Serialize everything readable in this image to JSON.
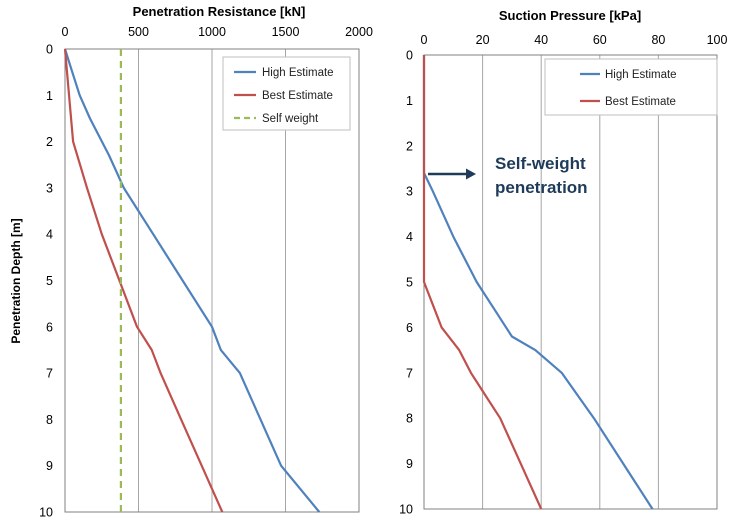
{
  "chart_data": [
    {
      "type": "line",
      "title": "Penetration Resistance [kN]",
      "xlabel": "Penetration Resistance [kN]",
      "ylabel": "Penetration Depth [m]",
      "x_axis_position": "top",
      "y_axis_inverted": true,
      "xlim": [
        0,
        2000
      ],
      "ylim": [
        0,
        10
      ],
      "xticks": [
        "0",
        "500",
        "1000",
        "1500",
        "2000"
      ],
      "yticks": [
        "0",
        "1",
        "2",
        "3",
        "4",
        "5",
        "6",
        "7",
        "8",
        "9",
        "10"
      ],
      "grid": "vertical",
      "legend": "top-right",
      "series": [
        {
          "name": "High Estimate",
          "color": "#4f81bd",
          "dash": "solid",
          "points": [
            [
              0,
              0
            ],
            [
              50,
              0.5
            ],
            [
              100,
              1.0
            ],
            [
              170,
              1.5
            ],
            [
              300,
              2.3
            ],
            [
              400,
              3.0
            ],
            [
              600,
              4.0
            ],
            [
              800,
              5.0
            ],
            [
              1000,
              6.0
            ],
            [
              1060,
              6.5
            ],
            [
              1190,
              7.0
            ],
            [
              1330,
              8.0
            ],
            [
              1470,
              9.0
            ],
            [
              1730,
              10.0
            ]
          ]
        },
        {
          "name": "Best Estimate",
          "color": "#c0504d",
          "dash": "solid",
          "points": [
            [
              0,
              0
            ],
            [
              55,
              2.0
            ],
            [
              150,
              3.0
            ],
            [
              250,
              4.0
            ],
            [
              370,
              5.0
            ],
            [
              490,
              6.0
            ],
            [
              590,
              6.5
            ],
            [
              650,
              7.0
            ],
            [
              790,
              8.0
            ],
            [
              930,
              9.0
            ],
            [
              1070,
              10.0
            ]
          ]
        },
        {
          "name": "Self weight",
          "color": "#9bbb59",
          "dash": "dashed",
          "points": [
            [
              380,
              0
            ],
            [
              380,
              10
            ]
          ]
        }
      ]
    },
    {
      "type": "line",
      "title": "Suction Pressure [kPa]",
      "xlabel": "Suction Pressure [kPa]",
      "ylabel": "",
      "x_axis_position": "top",
      "y_axis_inverted": true,
      "xlim": [
        0,
        100
      ],
      "ylim": [
        0,
        10
      ],
      "xticks": [
        "0",
        "20",
        "40",
        "60",
        "80",
        "100"
      ],
      "yticks": [
        "0",
        "1",
        "2",
        "3",
        "4",
        "5",
        "6",
        "7",
        "8",
        "9",
        "10"
      ],
      "grid": "vertical",
      "legend": "top-right",
      "annotation": {
        "text_line1": "Self-weight",
        "text_line2": "penetration",
        "points_to_depth": 2.6
      },
      "series": [
        {
          "name": "High Estimate",
          "color": "#4f81bd",
          "dash": "solid",
          "points": [
            [
              0,
              0
            ],
            [
              0,
              2.6
            ],
            [
              3,
              3.0
            ],
            [
              10,
              4.0
            ],
            [
              18,
              5.0
            ],
            [
              25,
              5.7
            ],
            [
              30,
              6.2
            ],
            [
              38,
              6.5
            ],
            [
              47,
              7.0
            ],
            [
              58,
              8.0
            ],
            [
              68,
              9.0
            ],
            [
              78,
              10.0
            ]
          ]
        },
        {
          "name": "Best Estimate",
          "color": "#c0504d",
          "dash": "solid",
          "points": [
            [
              0,
              0
            ],
            [
              0,
              5.0
            ],
            [
              3,
              5.5
            ],
            [
              6,
              6.0
            ],
            [
              12,
              6.5
            ],
            [
              16,
              7.0
            ],
            [
              21,
              7.5
            ],
            [
              26,
              8.0
            ],
            [
              33,
              9.0
            ],
            [
              40,
              10.0
            ]
          ]
        }
      ]
    }
  ]
}
